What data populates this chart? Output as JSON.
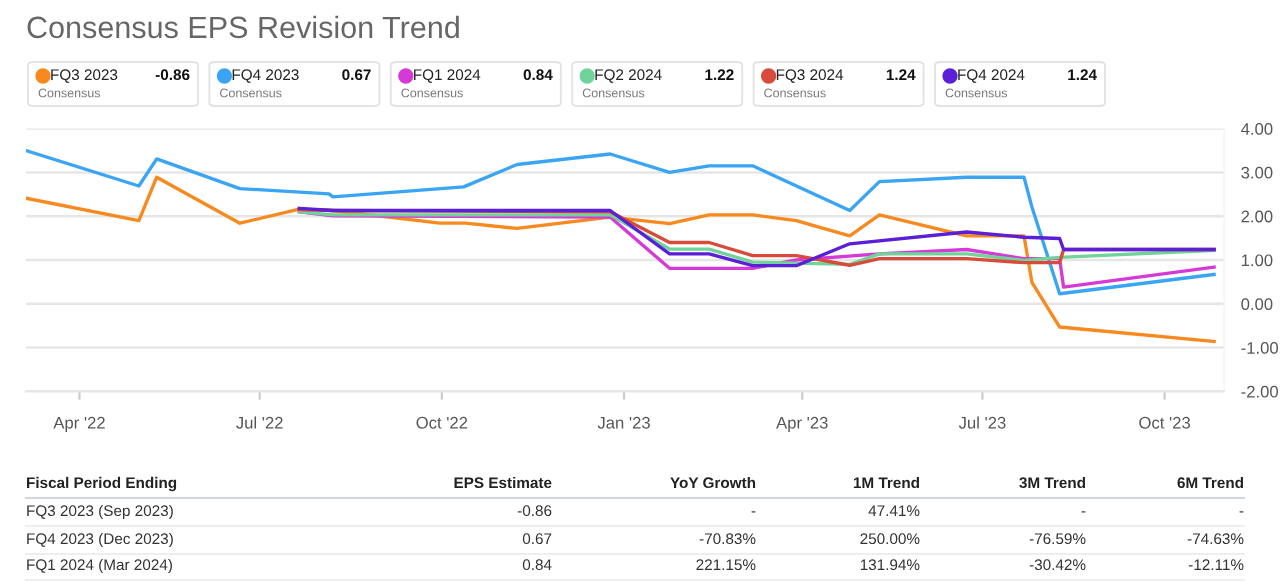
{
  "chart_data": {
    "type": "line",
    "title": "Consensus EPS Revision Trend",
    "series": [
      {
        "name": "FQ3 2023",
        "color": "#f7891f",
        "x": [
          "2022-03-05",
          "2022-05-01",
          "2022-05-10",
          "2022-06-21",
          "2022-07-21",
          "2022-08-07",
          "2022-09-30",
          "2022-10-13",
          "2022-11-08",
          "2022-12-25",
          "2023-01-24",
          "2023-02-13",
          "2023-03-07",
          "2023-03-29",
          "2023-04-25",
          "2023-05-10",
          "2023-06-23",
          "2023-07-22",
          "2023-07-26",
          "2023-08-09",
          "2023-10-26"
        ],
        "values": [
          2.41,
          1.9,
          2.89,
          1.84,
          2.16,
          2.13,
          1.84,
          1.84,
          1.72,
          1.98,
          1.83,
          2.03,
          2.03,
          1.9,
          1.55,
          2.03,
          1.55,
          1.55,
          0.49,
          -0.53,
          -0.86
        ]
      },
      {
        "name": "FQ4 2023",
        "color": "#3aa4f5",
        "x": [
          "2022-03-05",
          "2022-05-01",
          "2022-05-10",
          "2022-06-21",
          "2022-08-05",
          "2022-08-07",
          "2022-10-12",
          "2022-11-08",
          "2022-12-25",
          "2023-01-24",
          "2023-02-13",
          "2023-03-07",
          "2023-04-25",
          "2023-05-10",
          "2023-06-23",
          "2023-07-22",
          "2023-07-26",
          "2023-08-09",
          "2023-10-26"
        ],
        "values": [
          3.5,
          2.69,
          3.31,
          2.63,
          2.51,
          2.44,
          2.67,
          3.18,
          3.42,
          3.0,
          3.15,
          3.15,
          2.13,
          2.79,
          2.89,
          2.89,
          2.21,
          0.23,
          0.67
        ]
      },
      {
        "name": "FQ1 2024",
        "color": "#d63ad6",
        "x": [
          "2022-07-21",
          "2022-08-07",
          "2022-12-25",
          "2023-01-24",
          "2023-03-07",
          "2023-03-29",
          "2023-05-10",
          "2023-06-23",
          "2023-07-22",
          "2023-08-09",
          "2023-08-11",
          "2023-10-26"
        ],
        "values": [
          2.1,
          2.01,
          1.98,
          0.81,
          0.81,
          1.0,
          1.14,
          1.24,
          1.03,
          1.03,
          0.38,
          0.84
        ]
      },
      {
        "name": "FQ2 2024",
        "color": "#6fd39a",
        "x": [
          "2022-07-21",
          "2022-08-07",
          "2022-12-25",
          "2023-01-24",
          "2023-02-13",
          "2023-03-07",
          "2023-04-25",
          "2023-05-10",
          "2023-06-23",
          "2023-07-22",
          "2023-08-09",
          "2023-10-26"
        ],
        "values": [
          2.1,
          2.03,
          2.03,
          1.25,
          1.25,
          0.95,
          0.9,
          1.14,
          1.14,
          0.99,
          1.06,
          1.22
        ]
      },
      {
        "name": "FQ3 2024",
        "color": "#d84a3a",
        "x": [
          "2022-07-21",
          "2022-08-07",
          "2022-12-25",
          "2023-01-24",
          "2023-02-13",
          "2023-03-07",
          "2023-03-29",
          "2023-04-25",
          "2023-05-10",
          "2023-06-23",
          "2023-07-22",
          "2023-08-09",
          "2023-08-11",
          "2023-10-26"
        ],
        "values": [
          2.15,
          2.13,
          2.1,
          1.4,
          1.4,
          1.1,
          1.1,
          0.88,
          1.03,
          1.03,
          0.94,
          0.94,
          1.24,
          1.24
        ]
      },
      {
        "name": "FQ4 2024",
        "color": "#5a1fd6",
        "x": [
          "2022-07-21",
          "2022-08-07",
          "2022-12-25",
          "2023-01-24",
          "2023-02-13",
          "2023-03-07",
          "2023-03-29",
          "2023-04-25",
          "2023-06-23",
          "2023-07-22",
          "2023-08-09",
          "2023-08-11",
          "2023-10-26"
        ],
        "values": [
          2.18,
          2.13,
          2.13,
          1.14,
          1.14,
          0.87,
          0.87,
          1.37,
          1.64,
          1.52,
          1.49,
          1.24,
          1.24
        ]
      }
    ],
    "xlim": [
      "2022-03-05",
      "2023-10-31"
    ],
    "xticks": [
      {
        "value": "2022-04-01",
        "label": "Apr '22"
      },
      {
        "value": "2022-07-01",
        "label": "Jul '22"
      },
      {
        "value": "2022-10-01",
        "label": "Oct '22"
      },
      {
        "value": "2023-01-01",
        "label": "Jan '23"
      },
      {
        "value": "2023-04-01",
        "label": "Apr '23"
      },
      {
        "value": "2023-07-01",
        "label": "Jul '23"
      },
      {
        "value": "2023-10-01",
        "label": "Oct '23"
      }
    ],
    "ylim": [
      -2,
      4
    ],
    "yticks": [
      {
        "value": -2,
        "label": "-2.00"
      },
      {
        "value": -1,
        "label": "-1.00"
      },
      {
        "value": 0,
        "label": "0.00"
      },
      {
        "value": 1,
        "label": "1.00"
      },
      {
        "value": 2,
        "label": "2.00"
      },
      {
        "value": 3,
        "label": "3.00"
      },
      {
        "value": 4,
        "label": "4.00"
      }
    ],
    "grid": "y",
    "legend": "top left",
    "marker": "none",
    "line_style": "solid",
    "annotations": [
      "-0.86",
      "Consensus",
      "0.67",
      "Consensus",
      "0.84",
      "Consensus",
      "1.22",
      "Consensus",
      "1.24",
      "Consensus",
      "1.24",
      "Consensus",
      "Fiscal Period Ending",
      "EPS Estimate",
      "YoY Growth",
      "1M Trend",
      "3M Trend",
      "6M Trend",
      "FQ3 2023 (Sep 2023)",
      "-0.86",
      "-",
      "47.41%",
      "-",
      "-",
      "FQ4 2023 (Dec 2023)",
      "0.67",
      "-70.83%",
      "250.00%",
      "-76.59%",
      "-74.63%",
      "FQ1 2024 (Mar 2024)",
      "0.84",
      "221.15%",
      "131.94%",
      "-30.42%",
      "-12.11%"
    ]
  }
}
